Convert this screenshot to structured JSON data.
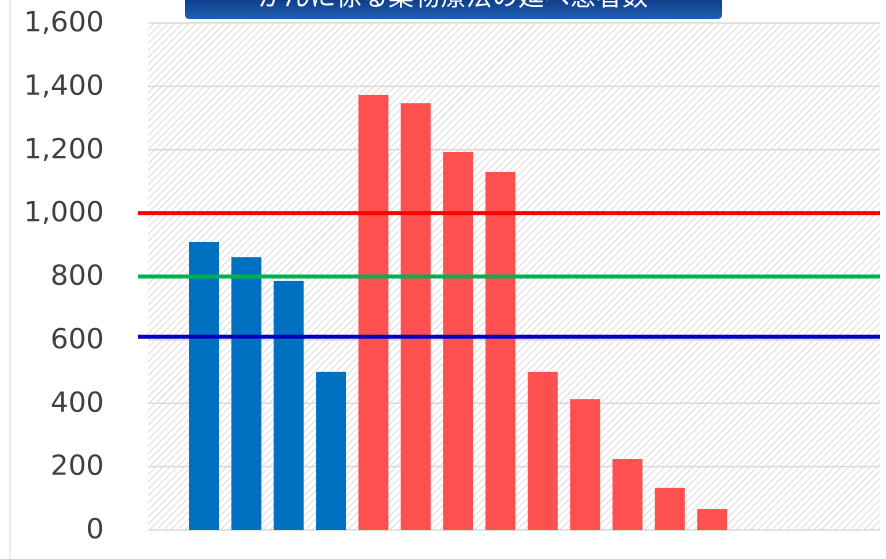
{
  "chart_data": {
    "type": "bar",
    "title": "がんに係る薬物療法の延べ患者数",
    "categories": [
      null,
      null,
      null,
      null,
      null,
      null,
      null,
      null,
      null,
      null,
      null,
      null,
      null
    ],
    "values": [
      909,
      861,
      786,
      499,
      1373,
      1347,
      1193,
      1130,
      499,
      413,
      224,
      133,
      66
    ],
    "colors": [
      "#0070c0",
      "#0070c0",
      "#0070c0",
      "#0070c0",
      "#ff5050",
      "#ff5050",
      "#ff5050",
      "#ff5050",
      "#ff5050",
      "#ff5050",
      "#ff5050",
      "#ff5050",
      "#ff5050"
    ],
    "reference_lines": [
      {
        "value": 1000,
        "color": "#ff0000"
      },
      {
        "value": 800,
        "color": "#00b050"
      },
      {
        "value": 610,
        "color": "#0000c0"
      }
    ],
    "ylim": [
      0,
      1600
    ],
    "yticks": [
      0,
      200,
      400,
      600,
      800,
      {
        "value": 1000,
        "label": "1,000"
      },
      {
        "value": 1200,
        "label": "1,200"
      },
      {
        "value": 1400,
        "label": "1,400"
      },
      {
        "value": 1600,
        "label": "1,600"
      }
    ],
    "grid": true
  }
}
